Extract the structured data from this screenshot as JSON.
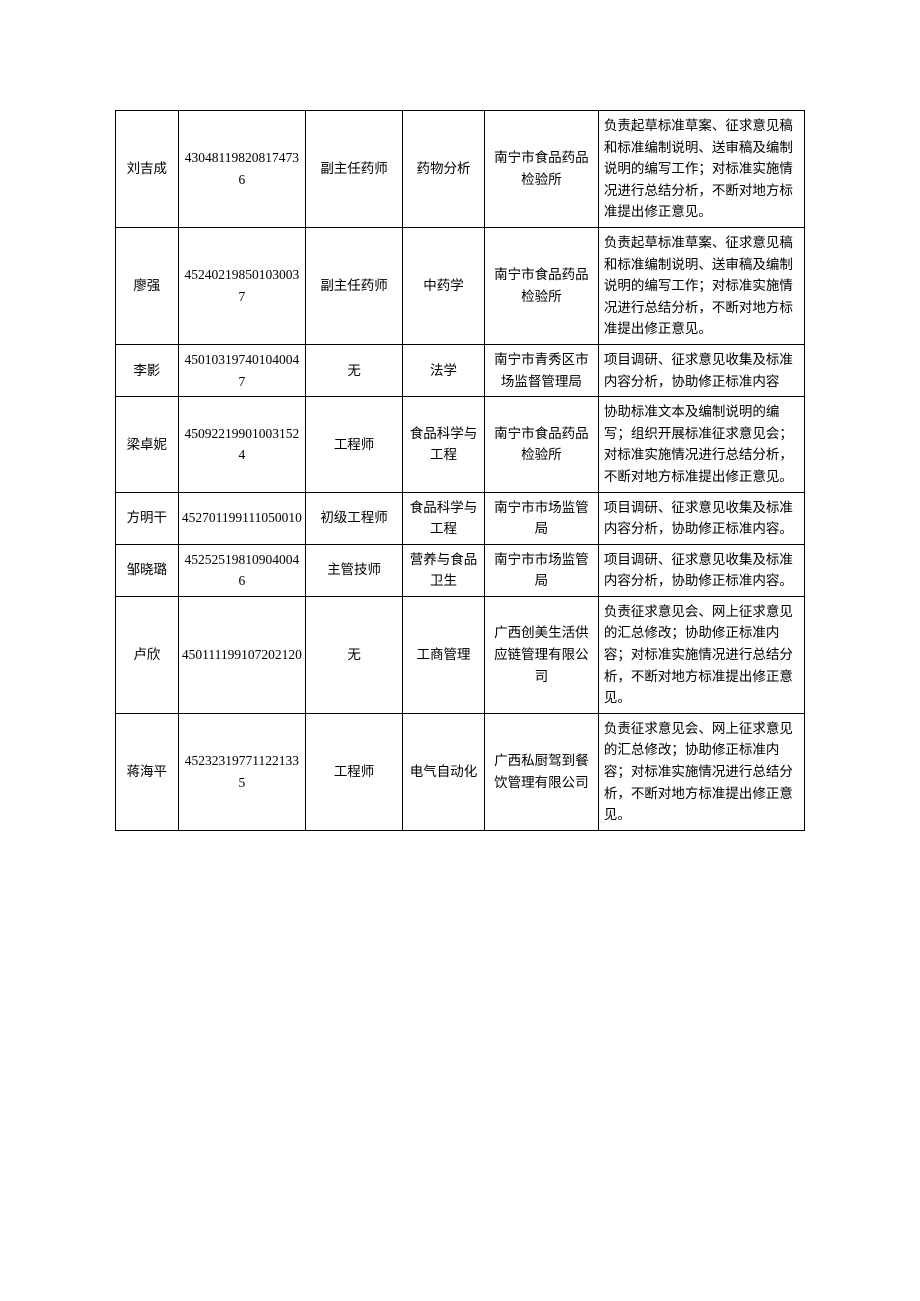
{
  "table": {
    "columns": [
      "name",
      "id",
      "title",
      "major",
      "org",
      "duty"
    ],
    "col_classes": [
      "c-name",
      "c-id",
      "c-title",
      "c-major",
      "c-org",
      "c-duty"
    ],
    "border_color": "#000000",
    "background_color": "#ffffff",
    "text_color": "#000000",
    "font_family": "SimSun",
    "font_size_pt": 10,
    "rows": [
      {
        "name": "刘吉成",
        "id": "430481198208174736",
        "title": "副主任药师",
        "major": "药物分析",
        "org": "南宁市食品药品检验所",
        "duty": "负责起草标准草案、征求意见稿和标准编制说明、送审稿及编制说明的编写工作；对标准实施情况进行总结分析，不断对地方标准提出修正意见。"
      },
      {
        "name": "廖强",
        "id": "452402198501030037",
        "title": "副主任药师",
        "major": "中药学",
        "org": "南宁市食品药品检验所",
        "duty": "负责起草标准草案、征求意见稿和标准编制说明、送审稿及编制说明的编写工作；对标准实施情况进行总结分析，不断对地方标准提出修正意见。"
      },
      {
        "name": "李影",
        "id": "450103197401040047",
        "title": "无",
        "major": "法学",
        "org": "南宁市青秀区市场监督管理局",
        "duty": "项目调研、征求意见收集及标准内容分析，协助修正标准内容"
      },
      {
        "name": "梁卓妮",
        "id": "450922199010031524",
        "title": "工程师",
        "major": "食品科学与工程",
        "org": "南宁市食品药品检验所",
        "duty": "协助标准文本及编制说明的编写；组织开展标准征求意见会；对标准实施情况进行总结分析，不断对地方标准提出修正意见。"
      },
      {
        "name": "方明干",
        "id": "452701199111050010",
        "title": "初级工程师",
        "major": "食品科学与工程",
        "org": "南宁市市场监管局",
        "duty": "项目调研、征求意见收集及标准内容分析，协助修正标准内容。"
      },
      {
        "name": "邹晓璐",
        "id": "452525198109040046",
        "title": "主管技师",
        "major": "营养与食品卫生",
        "org": "南宁市市场监管局",
        "duty": "项目调研、征求意见收集及标准内容分析，协助修正标准内容。"
      },
      {
        "name": "卢欣",
        "id": "450111199107202120",
        "title": "无",
        "major": "工商管理",
        "org": "广西创美生活供应链管理有限公司",
        "duty": "负责征求意见会、网上征求意见的汇总修改；协助修正标准内容；对标准实施情况进行总结分析，不断对地方标准提出修正意见。"
      },
      {
        "name": "蒋海平",
        "id": "452323197711221335",
        "title": "工程师",
        "major": "电气自动化",
        "org": "广西私厨驾到餐饮管理有限公司",
        "duty": "负责征求意见会、网上征求意见的汇总修改；协助修正标准内容；对标准实施情况进行总结分析，不断对地方标准提出修正意见。"
      }
    ]
  }
}
